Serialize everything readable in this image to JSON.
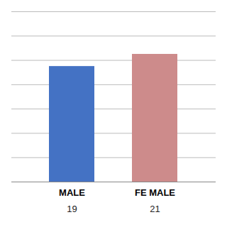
{
  "chart_data": {
    "type": "bar",
    "categories": [
      "MALE",
      "FE MALE"
    ],
    "values": [
      19,
      21
    ],
    "colors": [
      "#4472c4",
      "#cd8b8b"
    ],
    "ylim": [
      0,
      28
    ],
    "yticks": [
      0,
      4,
      8,
      12,
      16,
      20,
      24,
      28
    ],
    "grid": true,
    "tick_labels": "x",
    "data_labels": true
  }
}
